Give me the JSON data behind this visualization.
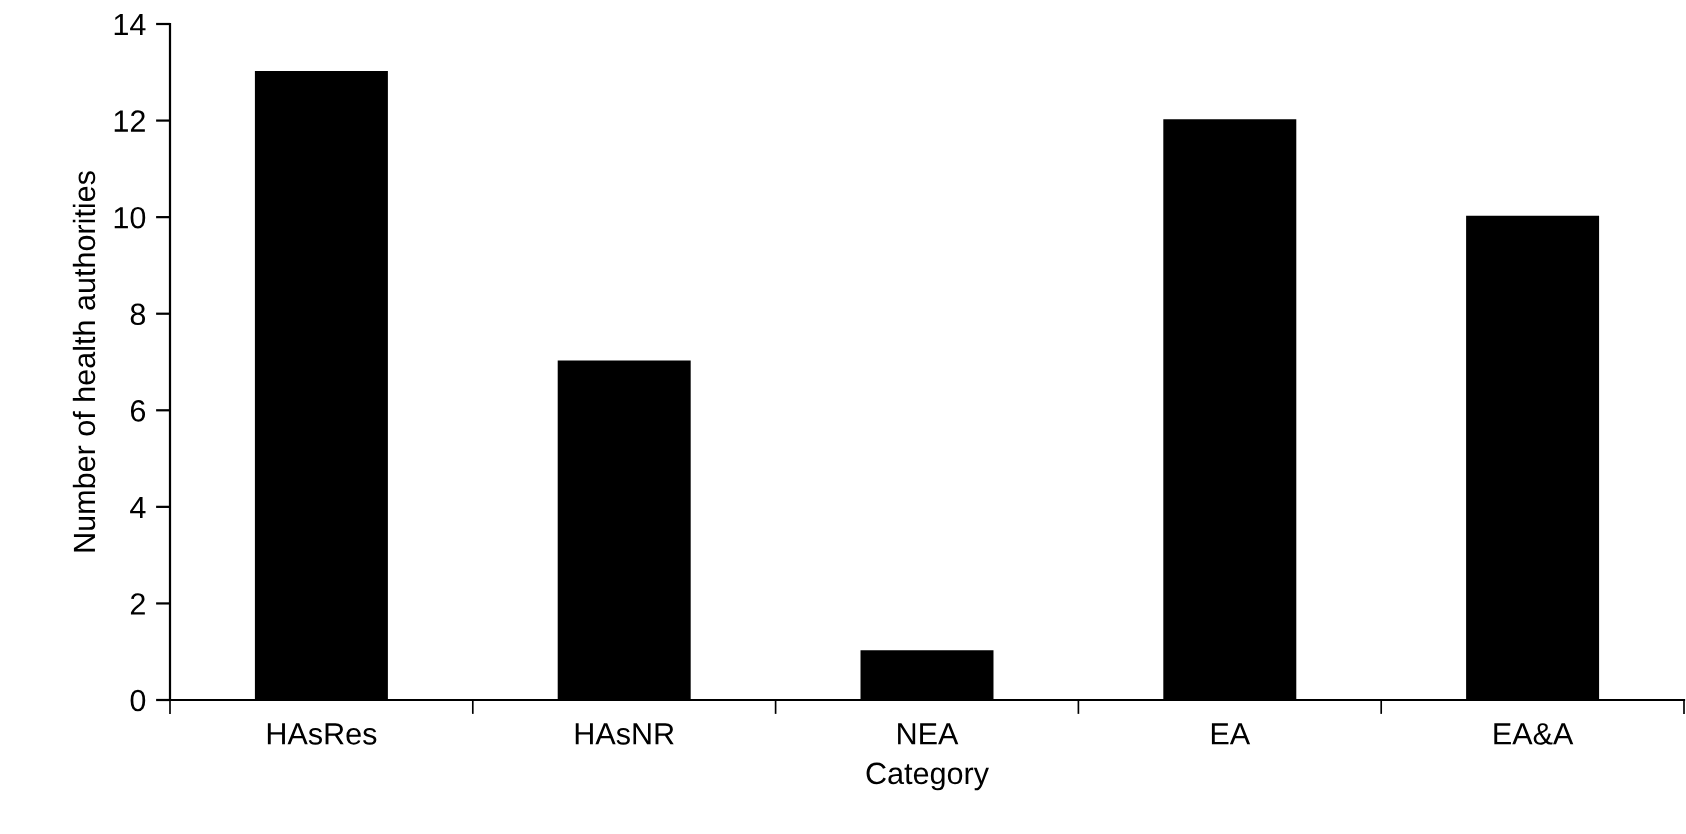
{
  "chart_data": {
    "type": "bar",
    "xlabel": "Category",
    "ylabel": "Number of health authorities",
    "categories": [
      "HAsRes",
      "HAsNR",
      "NEA",
      "EA",
      "EA&A"
    ],
    "values": [
      13,
      7,
      1,
      12,
      10
    ],
    "color": "#000000",
    "ylim": [
      0,
      14
    ],
    "yticks": [
      0,
      2,
      4,
      6,
      8,
      10,
      12,
      14
    ],
    "grid": false,
    "legend": false
  }
}
